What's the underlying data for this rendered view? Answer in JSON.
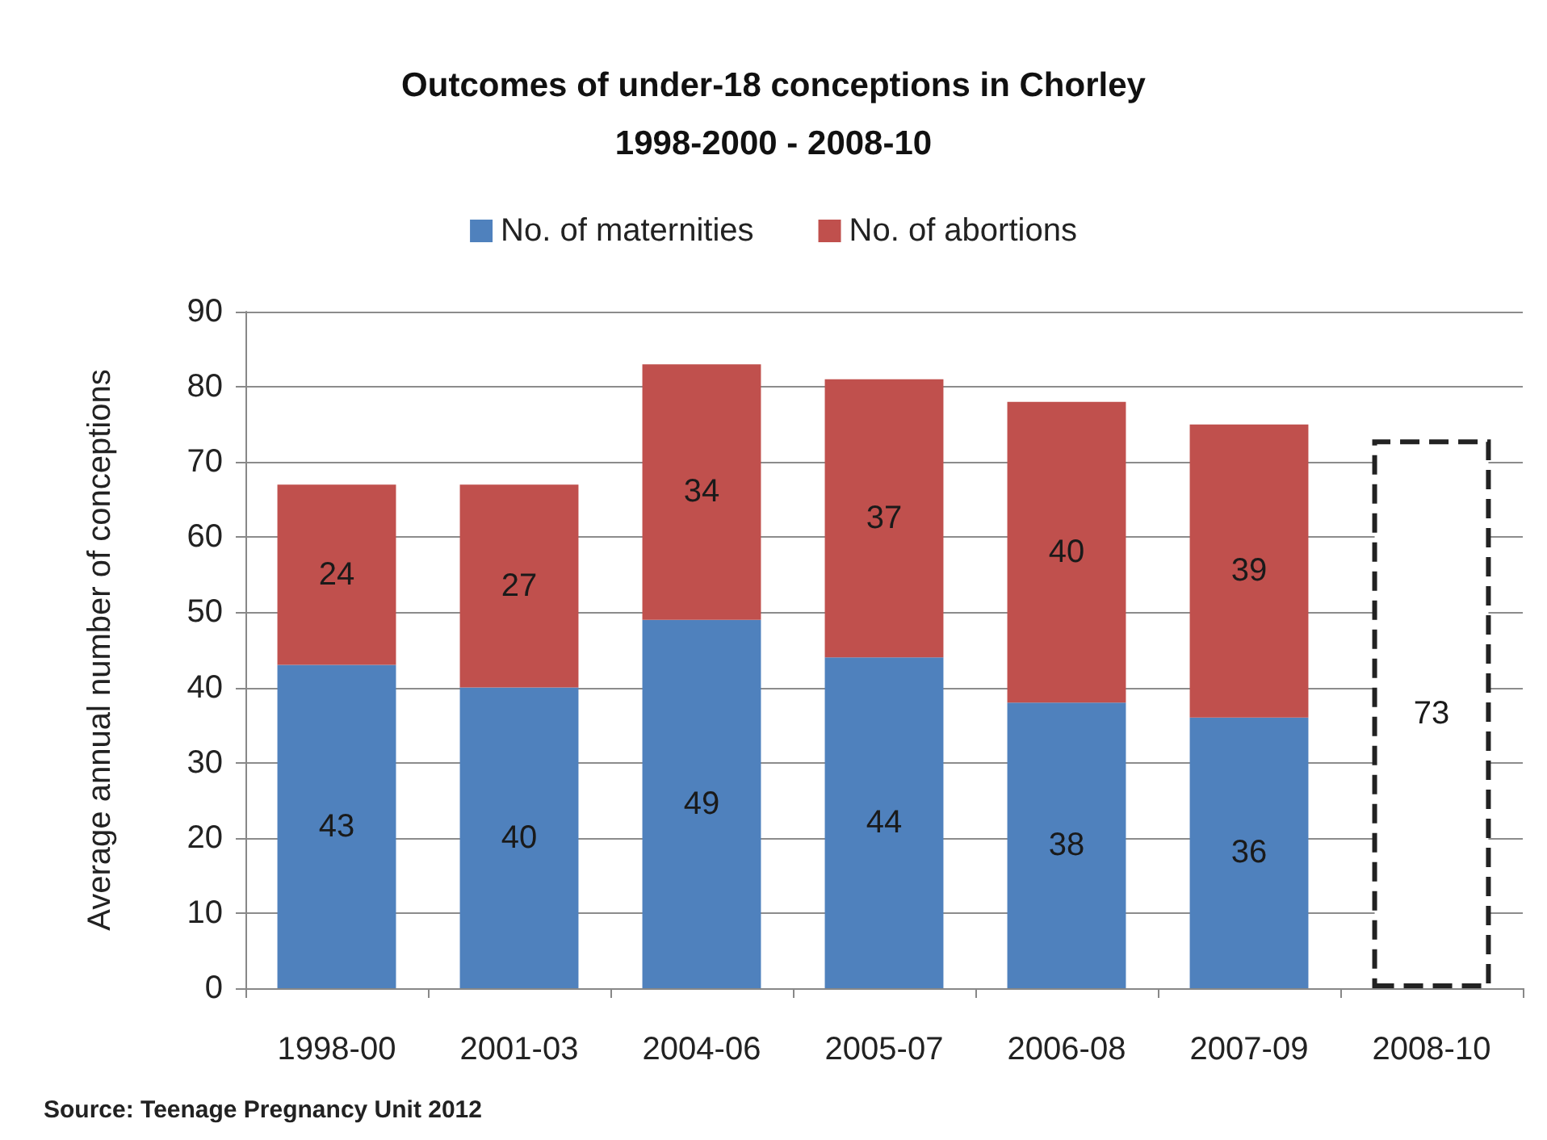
{
  "chart_data": {
    "type": "bar",
    "title": "Outcomes of under-18 conceptions in Chorley\n1998-2000 - 2008-10",
    "ylabel": "Average annual number of conceptions",
    "categories": [
      "1998-00",
      "2001-03",
      "2004-06",
      "2005-07",
      "2006-08",
      "2007-09",
      "2008-10"
    ],
    "series": [
      {
        "name": "No. of maternities",
        "color": "#4f81bd",
        "values": [
          43,
          40,
          49,
          44,
          38,
          36,
          null
        ]
      },
      {
        "name": "No. of abortions",
        "color": "#c0504d",
        "values": [
          24,
          27,
          34,
          37,
          40,
          39,
          null
        ]
      },
      {
        "color": "#ffffff",
        "line_style": "dashed",
        "values": [
          null,
          null,
          null,
          null,
          null,
          null,
          73
        ]
      }
    ],
    "stacked": true,
    "data_labels": true,
    "ylim": [
      0,
      90
    ],
    "yticks": [
      0,
      10,
      20,
      30,
      40,
      50,
      60,
      70,
      80,
      90
    ],
    "grid": "y",
    "legend": "top",
    "annotations": [
      "Source: Teenage Pregnancy Unit 2012"
    ]
  }
}
